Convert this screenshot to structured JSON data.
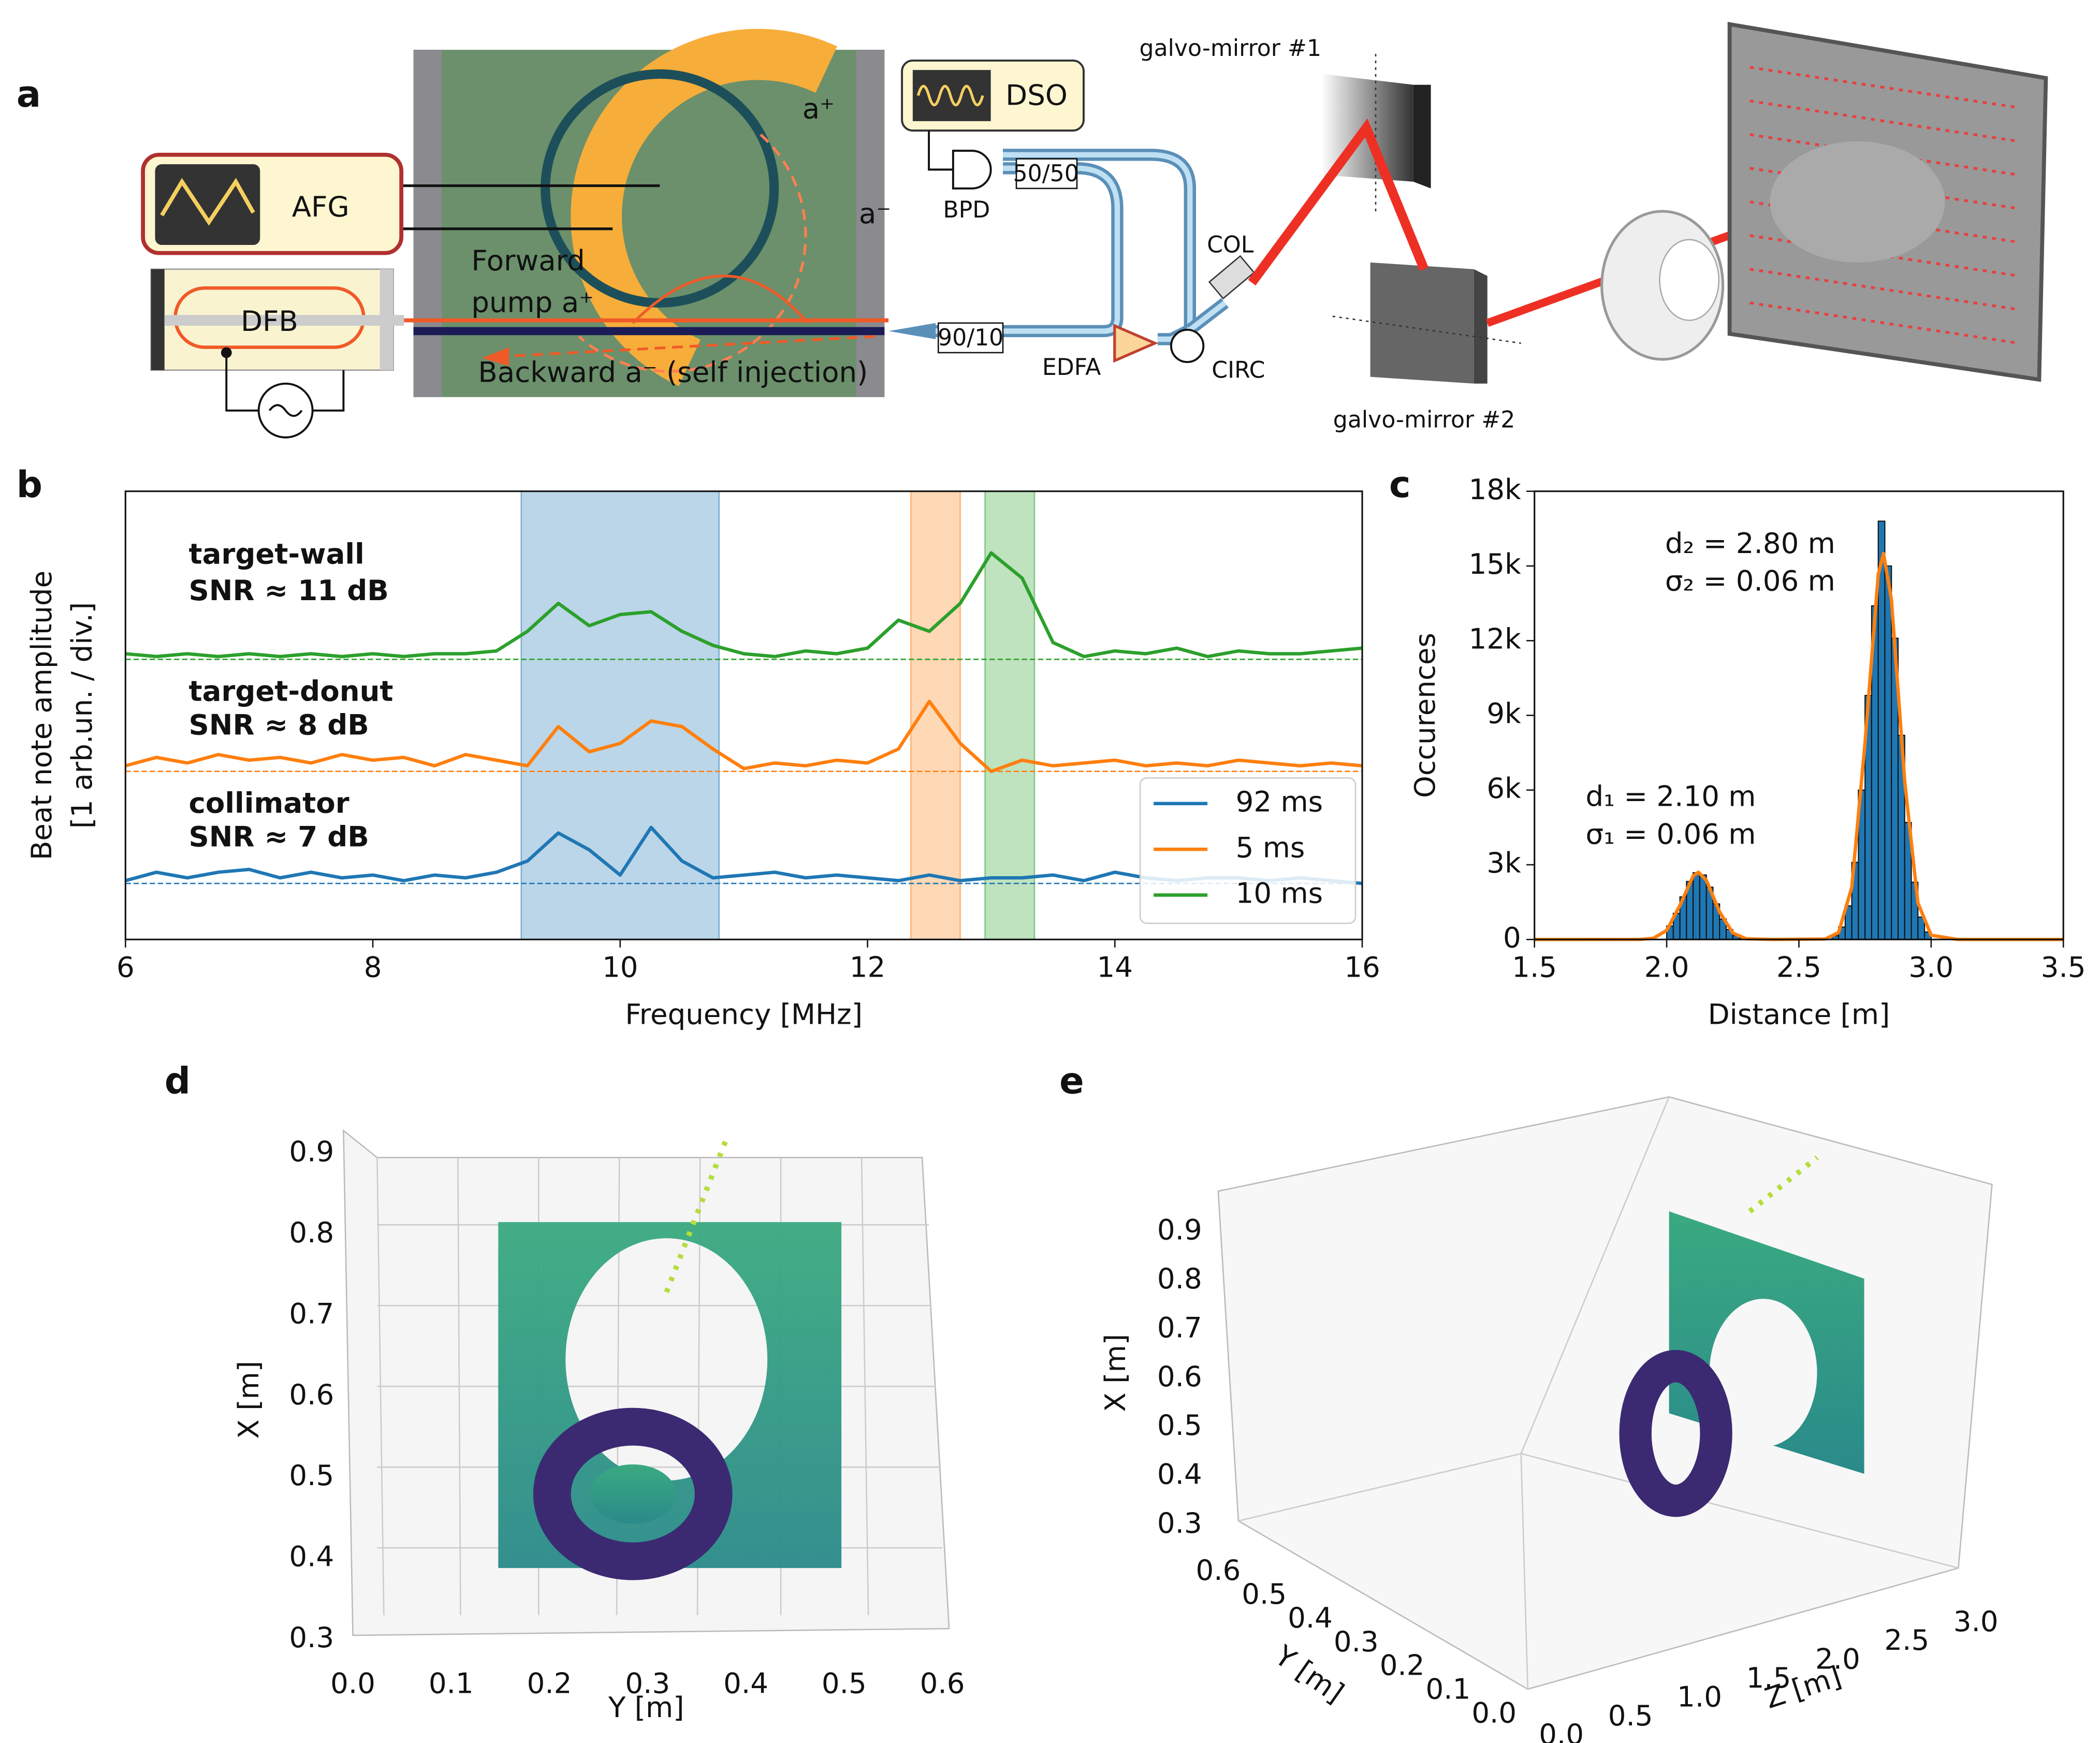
{
  "panel_labels": [
    "a",
    "b",
    "c",
    "d",
    "e"
  ],
  "diagram": {
    "labels": [
      "AFG",
      "DFB",
      "Forward",
      "pump a⁺",
      "Backward a⁻ (self injection)",
      "a⁺",
      "a⁻",
      "DSO",
      "50/50",
      "BPD",
      "90/10",
      "EDFA",
      "CIRC",
      "COL",
      "galvo-mirror #1",
      "galvo-mirror #2"
    ]
  },
  "chart_data": [
    {
      "type": "line",
      "xlabel": "Frequency [MHz]",
      "ylabel": [
        "Beat note amplitude",
        "[1 arb.un. / div.]"
      ],
      "xlim": [
        6,
        16
      ],
      "xticks": [
        6,
        8,
        10,
        12,
        14,
        16
      ],
      "ylim": [
        0,
        8
      ],
      "x": [
        6,
        6.25,
        6.5,
        6.75,
        7,
        7.25,
        7.5,
        7.75,
        8,
        8.25,
        8.5,
        8.75,
        9,
        9.25,
        9.5,
        9.75,
        10,
        10.25,
        10.5,
        10.75,
        11,
        11.25,
        11.5,
        11.75,
        12,
        12.25,
        12.5,
        12.75,
        13,
        13.25,
        13.5,
        13.75,
        14,
        14.25,
        14.5,
        14.75,
        15,
        15.25,
        15.5,
        15.75,
        16
      ],
      "series": [
        {
          "name": "92 ms",
          "color": "#1f77b4",
          "baseline": 1,
          "values": [
            1.05,
            1.2,
            1.1,
            1.2,
            1.25,
            1.1,
            1.2,
            1.1,
            1.15,
            1.05,
            1.15,
            1.1,
            1.2,
            1.4,
            1.9,
            1.6,
            1.15,
            2.0,
            1.4,
            1.1,
            1.15,
            1.2,
            1.1,
            1.15,
            1.1,
            1.05,
            1.15,
            1.05,
            1.1,
            1.1,
            1.15,
            1.05,
            1.2,
            1.1,
            1.05,
            1.1,
            1.1,
            1.05,
            1.1,
            1.05,
            1.0
          ]
        },
        {
          "name": "5 ms",
          "color": "#ff7f0e",
          "baseline": 3,
          "values": [
            3.1,
            3.25,
            3.15,
            3.3,
            3.2,
            3.25,
            3.15,
            3.3,
            3.2,
            3.25,
            3.1,
            3.3,
            3.2,
            3.1,
            3.8,
            3.35,
            3.5,
            3.9,
            3.8,
            3.4,
            3.05,
            3.15,
            3.1,
            3.2,
            3.15,
            3.4,
            4.25,
            3.5,
            3.0,
            3.2,
            3.1,
            3.15,
            3.2,
            3.1,
            3.15,
            3.1,
            3.2,
            3.15,
            3.1,
            3.15,
            3.1
          ]
        },
        {
          "name": "10 ms",
          "color": "#2ca02c",
          "baseline": 5,
          "values": [
            5.1,
            5.05,
            5.1,
            5.05,
            5.1,
            5.05,
            5.1,
            5.05,
            5.1,
            5.05,
            5.1,
            5.1,
            5.15,
            5.5,
            6.0,
            5.6,
            5.8,
            5.85,
            5.5,
            5.25,
            5.1,
            5.05,
            5.15,
            5.1,
            5.2,
            5.7,
            5.5,
            6.0,
            6.9,
            6.45,
            5.3,
            5.05,
            5.15,
            5.1,
            5.2,
            5.05,
            5.15,
            5.1,
            5.1,
            5.15,
            5.2
          ]
        }
      ],
      "bands": [
        {
          "x": [
            9.2,
            10.8
          ],
          "color": "#1f77b4"
        },
        {
          "x": [
            12.35,
            12.75
          ],
          "color": "#ff7f0e"
        },
        {
          "x": [
            12.95,
            13.35
          ],
          "color": "#2ca02c"
        }
      ],
      "annotations": [
        {
          "lines": [
            "target-wall",
            "SNR ≈ 11 dB"
          ],
          "color": "#2ca02c"
        },
        {
          "lines": [
            "target-donut",
            "SNR ≈ 8 dB"
          ],
          "color": "#ff7f0e"
        },
        {
          "lines": [
            "collimator",
            "SNR ≈ 7 dB"
          ],
          "color": "#1f77b4"
        }
      ]
    },
    {
      "type": "histogram",
      "xlabel": "Distance [m]",
      "ylabel": "Occurences",
      "color": "#1f77b4",
      "xlim": [
        1.5,
        3.5
      ],
      "xticks": [
        1.5,
        {
          "value": 2,
          "label": "2.0"
        },
        2.5,
        {
          "value": 3,
          "label": "3.0"
        },
        3.5
      ],
      "ylim": [
        0,
        18000
      ],
      "yticks": [
        0,
        {
          "value": 3000,
          "label": "3k"
        },
        {
          "value": 6000,
          "label": "6k"
        },
        {
          "value": 9000,
          "label": "9k"
        },
        {
          "value": 12000,
          "label": "12k"
        },
        {
          "value": 15000,
          "label": "15k"
        },
        {
          "value": 18000,
          "label": "18k"
        }
      ],
      "bins": [
        2.0,
        2.025,
        2.05,
        2.075,
        2.1,
        2.125,
        2.15,
        2.175,
        2.2,
        2.225,
        2.25,
        2.275,
        2.3,
        2.325,
        2.35,
        2.375,
        2.4,
        2.425,
        2.45,
        2.475,
        2.5,
        2.525,
        2.55,
        2.575,
        2.6,
        2.625,
        2.65,
        2.675,
        2.7,
        2.725,
        2.75,
        2.775,
        2.8,
        2.825,
        2.85,
        2.875,
        2.9,
        2.925,
        2.95,
        2.975,
        3.0
      ],
      "counts": [
        540,
        1050,
        1710,
        2330,
        2680,
        2590,
        2100,
        1430,
        820,
        400,
        160,
        50,
        0,
        0,
        0,
        0,
        0,
        0,
        0,
        0,
        0,
        0,
        0,
        0,
        0,
        150,
        500,
        1350,
        3100,
        6000,
        9800,
        13400,
        16800,
        15000,
        12100,
        8200,
        4700,
        2300,
        900,
        300
      ],
      "fit": {
        "color": "#ff7f0e",
        "x": [
          1.5,
          1.9,
          1.95,
          2.0,
          2.05,
          2.1,
          2.12,
          2.15,
          2.2,
          2.25,
          2.3,
          2.4,
          2.6,
          2.65,
          2.7,
          2.75,
          2.8,
          2.82,
          2.85,
          2.9,
          2.95,
          3.0,
          3.1,
          3.5
        ],
        "values": [
          0,
          3,
          50,
          365,
          1370,
          2550,
          2700,
          2380,
          1110,
          260,
          30,
          0,
          19,
          280,
          2100,
          7900,
          14660,
          15500,
          13640,
          6360,
          1470,
          170,
          0,
          0
        ]
      },
      "annotations": [
        [
          "d₂ = 2.80 m",
          "σ₂ = 0.06 m"
        ],
        [
          "d₁ = 2.10 m",
          "σ₁ = 0.06 m"
        ]
      ]
    }
  ],
  "panel_d": {
    "xlabel": "X [m]",
    "ylabel": "Y [m]",
    "x_ticks": [
      "0.3",
      "0.4",
      "0.5",
      "0.6",
      "0.7",
      "0.8",
      "0.9"
    ],
    "y_ticks": [
      "0.0",
      "0.1",
      "0.2",
      "0.3",
      "0.4",
      "0.5",
      "0.6"
    ]
  },
  "panel_e": {
    "xlabel": "X [m]",
    "ylabel": "Y [m]",
    "zlabel": "Z [m]",
    "x_ticks": [
      "0.3",
      "0.4",
      "0.5",
      "0.6",
      "0.7",
      "0.8",
      "0.9"
    ],
    "y_ticks": [
      "0.0",
      "0.1",
      "0.2",
      "0.3",
      "0.4",
      "0.5",
      "0.6"
    ],
    "z_ticks": [
      "0.0",
      "0.5",
      "1.0",
      "1.5",
      "2.0",
      "2.5",
      "3.0"
    ]
  }
}
